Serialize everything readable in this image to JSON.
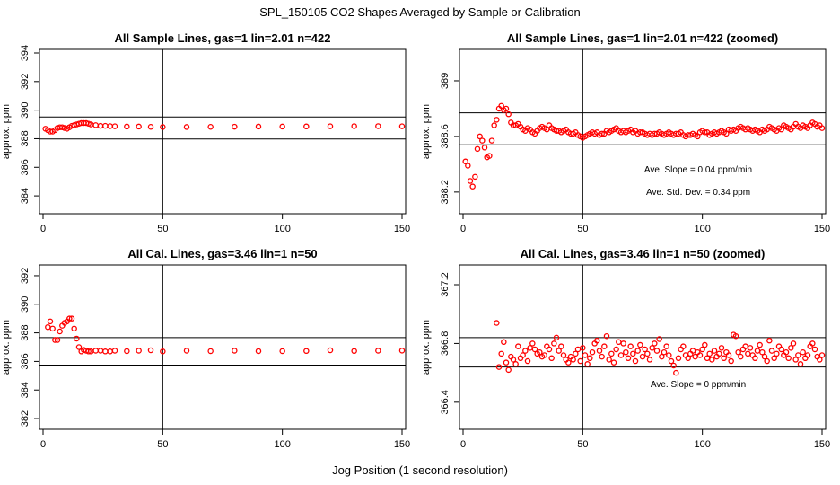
{
  "figure": {
    "title": "SPL_150105  CO2 Shapes Averaged by Sample or Calibration",
    "xlabel": "Jog Position (1 second resolution)"
  },
  "colors": {
    "points": "#ff0000",
    "axes": "#000000",
    "background": "#ffffff"
  },
  "chart_data": [
    {
      "type": "scatter",
      "title": "All Sample Lines, gas=1 lin=2.01 n=422",
      "ylabel": "approx. ppm",
      "xlim": [
        0,
        150
      ],
      "ylim": [
        383,
        394
      ],
      "xticks": [
        0,
        50,
        100,
        150
      ],
      "yticks": [
        384,
        386,
        388,
        390,
        392,
        394
      ],
      "vline": 50,
      "hlines": [
        389.52,
        387.98
      ],
      "series": [
        {
          "name": "sample",
          "x": [
            1,
            2,
            3,
            4,
            5,
            6,
            7,
            8,
            9,
            10,
            11,
            12,
            13,
            14,
            15,
            16,
            17,
            18,
            19,
            20,
            22,
            24,
            26,
            28,
            30,
            35,
            40,
            45,
            50,
            60,
            70,
            80,
            90,
            100,
            110,
            120,
            130,
            140,
            150
          ],
          "y": [
            388.7,
            388.6,
            388.5,
            388.5,
            388.6,
            388.75,
            388.8,
            388.8,
            388.75,
            388.7,
            388.8,
            388.9,
            388.95,
            389.0,
            389.05,
            389.1,
            389.1,
            389.1,
            389.05,
            389.0,
            388.95,
            388.9,
            388.9,
            388.88,
            388.87,
            388.85,
            388.85,
            388.83,
            388.82,
            388.82,
            388.83,
            388.84,
            388.85,
            388.85,
            388.86,
            388.87,
            388.88,
            388.88,
            388.87
          ]
        }
      ]
    },
    {
      "type": "scatter",
      "title": "All Sample Lines, gas=1 lin=2.01 n=422 (zoomed)",
      "ylabel": "approx. ppm",
      "xlim": [
        0,
        150
      ],
      "ylim": [
        388.07,
        389.2
      ],
      "xticks": [
        0,
        50,
        100,
        150
      ],
      "yticks": [
        388.2,
        388.6,
        389.0
      ],
      "vline": 50,
      "hlines": [
        388.77,
        388.54
      ],
      "annotations": [
        "Ave. Slope =  0.04  ppm/min",
        "Ave. Std. Dev. =  0.34  ppm"
      ],
      "series": [
        {
          "name": "sample-zoomed",
          "x": [
            1,
            2,
            3,
            4,
            5,
            6,
            7,
            8,
            9,
            10,
            11,
            12,
            13,
            14,
            15,
            16,
            17,
            18,
            19,
            20,
            21,
            22,
            23,
            24,
            25,
            26,
            27,
            28,
            29,
            30,
            31,
            32,
            33,
            34,
            35,
            36,
            37,
            38,
            39,
            40,
            41,
            42,
            43,
            44,
            45,
            46,
            47,
            48,
            49,
            50,
            51,
            52,
            53,
            54,
            55,
            56,
            57,
            58,
            59,
            60,
            61,
            62,
            63,
            64,
            65,
            66,
            67,
            68,
            69,
            70,
            71,
            72,
            73,
            74,
            75,
            76,
            77,
            78,
            79,
            80,
            81,
            82,
            83,
            84,
            85,
            86,
            87,
            88,
            89,
            90,
            91,
            92,
            93,
            94,
            95,
            96,
            97,
            98,
            99,
            100,
            101,
            102,
            103,
            104,
            105,
            106,
            107,
            108,
            109,
            110,
            111,
            112,
            113,
            114,
            115,
            116,
            117,
            118,
            119,
            120,
            121,
            122,
            123,
            124,
            125,
            126,
            127,
            128,
            129,
            130,
            131,
            132,
            133,
            134,
            135,
            136,
            137,
            138,
            139,
            140,
            141,
            142,
            143,
            144,
            145,
            146,
            147,
            148,
            149,
            150
          ],
          "y": [
            388.42,
            388.39,
            388.28,
            388.24,
            388.31,
            388.51,
            388.6,
            388.57,
            388.52,
            388.45,
            388.46,
            388.57,
            388.68,
            388.72,
            388.8,
            388.82,
            388.79,
            388.8,
            388.76,
            388.7,
            388.68,
            388.68,
            388.69,
            388.67,
            388.65,
            388.64,
            388.66,
            388.65,
            388.63,
            388.62,
            388.64,
            388.66,
            388.67,
            388.66,
            388.65,
            388.68,
            388.66,
            388.65,
            388.64,
            388.64,
            388.63,
            388.64,
            388.65,
            388.63,
            388.62,
            388.62,
            388.63,
            388.61,
            388.6,
            388.59,
            388.6,
            388.61,
            388.62,
            388.63,
            388.62,
            388.63,
            388.61,
            388.62,
            388.62,
            388.64,
            388.63,
            388.64,
            388.65,
            388.66,
            388.64,
            388.63,
            388.64,
            388.63,
            388.64,
            388.65,
            388.63,
            388.64,
            388.62,
            388.63,
            388.63,
            388.62,
            388.61,
            388.62,
            388.61,
            388.62,
            388.62,
            388.63,
            388.62,
            388.61,
            388.62,
            388.63,
            388.62,
            388.61,
            388.62,
            388.62,
            388.63,
            388.61,
            388.6,
            388.61,
            388.61,
            388.62,
            388.61,
            388.6,
            388.63,
            388.64,
            388.63,
            388.63,
            388.61,
            388.62,
            388.63,
            388.62,
            388.63,
            388.64,
            388.63,
            388.62,
            388.65,
            388.64,
            388.65,
            388.64,
            388.66,
            388.67,
            388.66,
            388.65,
            388.66,
            388.65,
            388.64,
            388.65,
            388.64,
            388.63,
            388.65,
            388.64,
            388.65,
            388.67,
            388.66,
            388.65,
            388.64,
            388.66,
            388.65,
            388.68,
            388.67,
            388.66,
            388.65,
            388.67,
            388.69,
            388.67,
            388.66,
            388.68,
            388.67,
            388.66,
            388.68,
            388.7,
            388.69,
            388.67,
            388.68,
            388.66
          ]
        }
      ]
    },
    {
      "type": "scatter",
      "title": "All Cal. Lines, gas=3.46 lin=1 n=50",
      "ylabel": "approx. ppm",
      "xlim": [
        0,
        150
      ],
      "ylim": [
        381.5,
        392.5
      ],
      "xticks": [
        0,
        50,
        100,
        150
      ],
      "yticks": [
        382,
        384,
        386,
        388,
        390,
        392
      ],
      "vline": 50,
      "hlines": [
        387.67,
        385.74
      ],
      "series": [
        {
          "name": "cal",
          "x": [
            2,
            3,
            4,
            5,
            6,
            7,
            8,
            9,
            10,
            11,
            12,
            13,
            14,
            15,
            16,
            17,
            18,
            19,
            20,
            22,
            24,
            26,
            28,
            30,
            35,
            40,
            45,
            50,
            60,
            70,
            80,
            90,
            100,
            110,
            120,
            130,
            140,
            150
          ],
          "y": [
            388.4,
            388.8,
            388.3,
            387.5,
            387.5,
            388.1,
            388.5,
            388.7,
            388.8,
            389.0,
            389.0,
            388.3,
            387.6,
            387.0,
            386.7,
            386.8,
            386.75,
            386.7,
            386.7,
            386.75,
            386.75,
            386.7,
            386.7,
            386.75,
            386.72,
            386.75,
            386.78,
            386.7,
            386.75,
            386.72,
            386.75,
            386.72,
            386.72,
            386.73,
            386.78,
            386.73,
            386.75,
            386.76
          ]
        }
      ]
    },
    {
      "type": "scatter",
      "title": "All Cal. Lines, gas=3.46 lin=1 n=50 (zoomed)",
      "ylabel": "approx. ppm",
      "xlim": [
        0,
        150
      ],
      "ylim": [
        366.24,
        367.31
      ],
      "xticks": [
        0,
        50,
        100,
        150
      ],
      "yticks": [
        366.4,
        366.8,
        367.2
      ],
      "vline": 50,
      "hlines": [
        366.84,
        366.64
      ],
      "annotations": [
        "Ave. Slope =  0  ppm/min"
      ],
      "series": [
        {
          "name": "cal-zoomed",
          "x": [
            14,
            15,
            16,
            17,
            18,
            19,
            20,
            21,
            22,
            23,
            24,
            25,
            26,
            27,
            28,
            29,
            30,
            31,
            32,
            33,
            34,
            35,
            36,
            37,
            38,
            39,
            40,
            41,
            42,
            43,
            44,
            45,
            46,
            47,
            48,
            49,
            50,
            51,
            52,
            53,
            54,
            55,
            56,
            57,
            58,
            59,
            60,
            61,
            62,
            63,
            64,
            65,
            66,
            67,
            68,
            69,
            70,
            71,
            72,
            73,
            74,
            75,
            76,
            77,
            78,
            79,
            80,
            81,
            82,
            83,
            84,
            85,
            86,
            87,
            88,
            89,
            90,
            91,
            92,
            93,
            94,
            95,
            96,
            97,
            98,
            99,
            100,
            101,
            102,
            103,
            104,
            105,
            106,
            107,
            108,
            109,
            110,
            111,
            112,
            113,
            114,
            115,
            116,
            117,
            118,
            119,
            120,
            121,
            122,
            123,
            124,
            125,
            126,
            127,
            128,
            129,
            130,
            131,
            132,
            133,
            134,
            135,
            136,
            137,
            138,
            139,
            140,
            141,
            142,
            143,
            144,
            145,
            146,
            147,
            148,
            149,
            150
          ],
          "y": [
            366.94,
            366.64,
            366.73,
            366.81,
            366.67,
            366.62,
            366.71,
            366.69,
            366.66,
            366.78,
            366.7,
            366.72,
            366.75,
            366.68,
            366.77,
            366.8,
            366.76,
            366.73,
            366.74,
            366.71,
            366.72,
            366.78,
            366.76,
            366.7,
            366.8,
            366.84,
            366.75,
            366.78,
            366.72,
            366.69,
            366.67,
            366.71,
            366.69,
            366.73,
            366.76,
            366.68,
            366.77,
            366.72,
            366.66,
            366.7,
            366.74,
            366.8,
            366.82,
            366.75,
            366.71,
            366.78,
            366.85,
            366.69,
            366.73,
            366.67,
            366.76,
            366.81,
            366.72,
            366.8,
            366.74,
            366.7,
            366.78,
            366.73,
            366.68,
            366.75,
            366.79,
            366.71,
            366.76,
            366.73,
            366.69,
            366.77,
            366.8,
            366.75,
            366.83,
            366.71,
            366.74,
            366.78,
            366.72,
            366.68,
            366.65,
            366.6,
            366.7,
            366.76,
            366.78,
            366.72,
            366.7,
            366.73,
            366.75,
            366.71,
            366.74,
            366.72,
            366.76,
            366.79,
            366.7,
            366.73,
            366.69,
            366.75,
            366.71,
            366.73,
            366.77,
            366.7,
            366.74,
            366.72,
            366.68,
            366.86,
            366.85,
            366.74,
            366.71,
            366.76,
            366.78,
            366.73,
            366.77,
            366.72,
            366.7,
            366.75,
            366.79,
            366.74,
            366.71,
            366.68,
            366.82,
            366.75,
            366.7,
            366.73,
            366.78,
            366.76,
            366.72,
            366.74,
            366.7,
            366.77,
            366.8,
            366.69,
            366.72,
            366.66,
            366.74,
            366.7,
            366.72,
            366.78,
            366.8,
            366.76,
            366.71,
            366.69,
            366.72
          ]
        }
      ]
    }
  ]
}
